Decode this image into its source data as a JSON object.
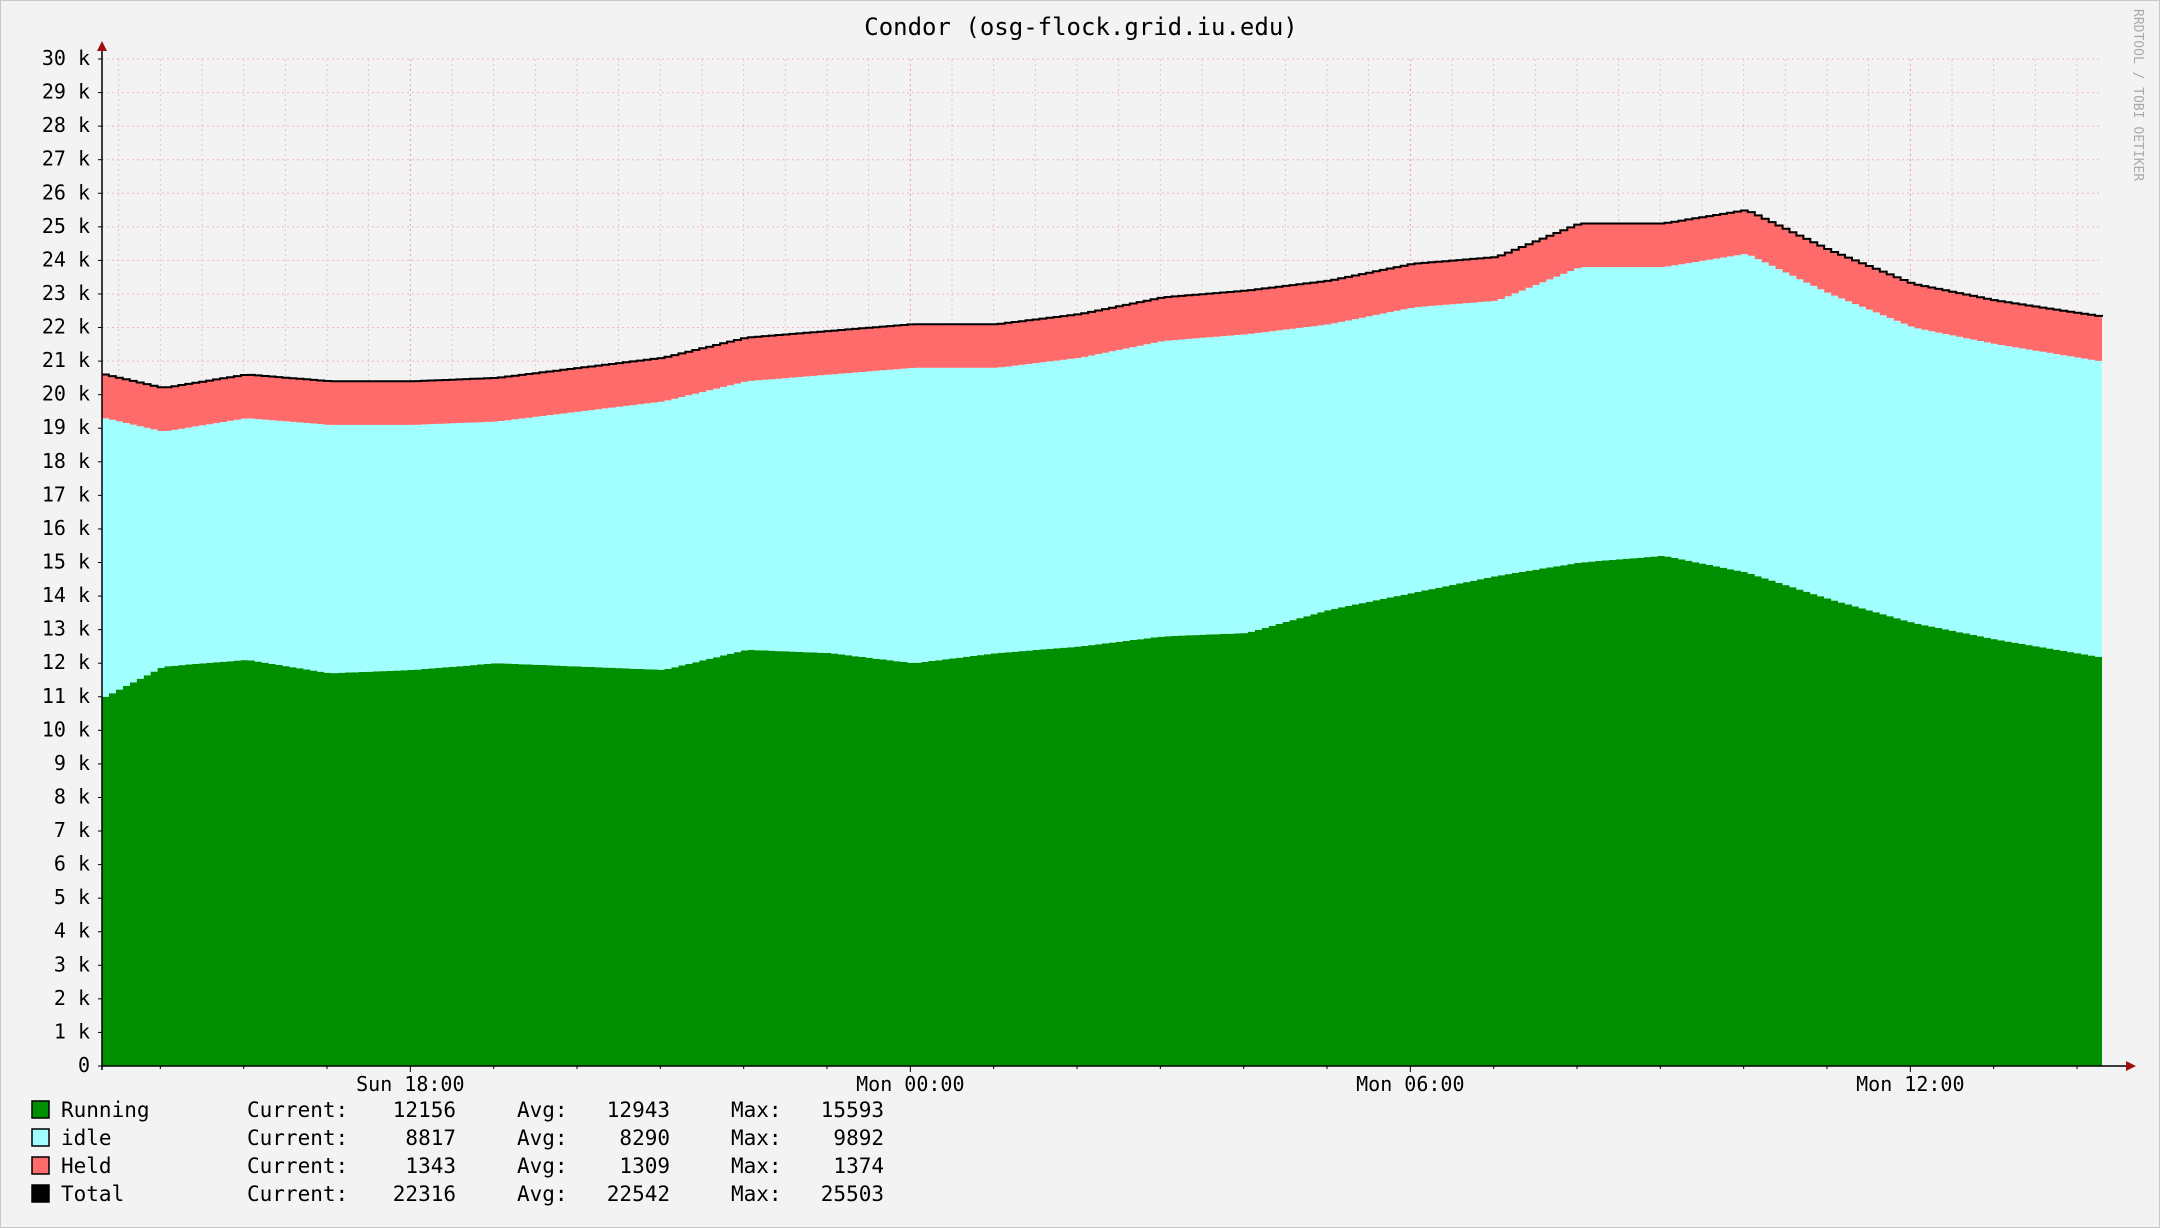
{
  "chart_data": {
    "type": "area",
    "title": "Condor (osg-flock.grid.iu.edu)",
    "watermark": "RRDTOOL / TOBI OETIKER",
    "ylim": [
      0,
      30000
    ],
    "y_ticks": [
      {
        "value": 0,
        "label": "0"
      },
      {
        "value": 1000,
        "label": "1 k"
      },
      {
        "value": 2000,
        "label": "2 k"
      },
      {
        "value": 3000,
        "label": "3 k"
      },
      {
        "value": 4000,
        "label": "4 k"
      },
      {
        "value": 5000,
        "label": "5 k"
      },
      {
        "value": 6000,
        "label": "6 k"
      },
      {
        "value": 7000,
        "label": "7 k"
      },
      {
        "value": 8000,
        "label": "8 k"
      },
      {
        "value": 9000,
        "label": "9 k"
      },
      {
        "value": 10000,
        "label": "10 k"
      },
      {
        "value": 11000,
        "label": "11 k"
      },
      {
        "value": 12000,
        "label": "12 k"
      },
      {
        "value": 13000,
        "label": "13 k"
      },
      {
        "value": 14000,
        "label": "14 k"
      },
      {
        "value": 15000,
        "label": "15 k"
      },
      {
        "value": 16000,
        "label": "16 k"
      },
      {
        "value": 17000,
        "label": "17 k"
      },
      {
        "value": 18000,
        "label": "18 k"
      },
      {
        "value": 19000,
        "label": "19 k"
      },
      {
        "value": 20000,
        "label": "20 k"
      },
      {
        "value": 21000,
        "label": "21 k"
      },
      {
        "value": 22000,
        "label": "22 k"
      },
      {
        "value": 23000,
        "label": "23 k"
      },
      {
        "value": 24000,
        "label": "24 k"
      },
      {
        "value": 25000,
        "label": "25 k"
      },
      {
        "value": 26000,
        "label": "26 k"
      },
      {
        "value": 27000,
        "label": "27 k"
      },
      {
        "value": 28000,
        "label": "28 k"
      },
      {
        "value": 29000,
        "label": "29 k"
      },
      {
        "value": 30000,
        "label": "30 k"
      }
    ],
    "x_range": [
      "Sun 14:18",
      "Mon 14:18"
    ],
    "x_ticks": [
      {
        "time": "Sun 18:00",
        "label": "Sun 18:00"
      },
      {
        "time": "Mon 00:00",
        "label": "Mon 00:00"
      },
      {
        "time": "Mon 06:00",
        "label": "Mon 06:00"
      },
      {
        "time": "Mon 12:00",
        "label": "Mon 12:00"
      }
    ],
    "grid": true,
    "stacked": true,
    "series": [
      {
        "name": "Running",
        "color": "#008f00",
        "x": [
          "Sun 14:18",
          "Sun 15:00",
          "Sun 16:00",
          "Sun 17:00",
          "Sun 18:00",
          "Sun 19:00",
          "Sun 20:00",
          "Sun 21:00",
          "Sun 22:00",
          "Sun 23:00",
          "Mon 00:00",
          "Mon 01:00",
          "Mon 02:00",
          "Mon 03:00",
          "Mon 04:00",
          "Mon 05:00",
          "Mon 06:00",
          "Mon 07:00",
          "Mon 08:00",
          "Mon 09:00",
          "Mon 10:00",
          "Mon 11:00",
          "Mon 12:00",
          "Mon 13:00",
          "Mon 14:18"
        ],
        "values": [
          11000,
          11900,
          12100,
          11700,
          11800,
          12000,
          11900,
          11800,
          12400,
          12300,
          12000,
          12300,
          12500,
          12800,
          12900,
          13600,
          14100,
          14600,
          15000,
          15200,
          14700,
          13900,
          13200,
          12700,
          12156
        ]
      },
      {
        "name": "idle",
        "color": "#a2ffff",
        "x": [
          "Sun 14:18",
          "Sun 15:00",
          "Sun 16:00",
          "Sun 17:00",
          "Sun 18:00",
          "Sun 19:00",
          "Sun 20:00",
          "Sun 21:00",
          "Sun 22:00",
          "Sun 23:00",
          "Mon 00:00",
          "Mon 01:00",
          "Mon 02:00",
          "Mon 03:00",
          "Mon 04:00",
          "Mon 05:00",
          "Mon 06:00",
          "Mon 07:00",
          "Mon 08:00",
          "Mon 09:00",
          "Mon 10:00",
          "Mon 11:00",
          "Mon 12:00",
          "Mon 13:00",
          "Mon 14:18"
        ],
        "values": [
          8300,
          7000,
          7200,
          7400,
          7300,
          7200,
          7600,
          8000,
          8000,
          8300,
          8800,
          8500,
          8600,
          8800,
          8900,
          8500,
          8500,
          8200,
          8800,
          8600,
          9500,
          9100,
          8800,
          8800,
          8817
        ]
      },
      {
        "name": "Held",
        "color": "#ff6b6b",
        "x": [
          "Sun 14:18",
          "Sun 15:00",
          "Sun 16:00",
          "Sun 17:00",
          "Sun 18:00",
          "Sun 19:00",
          "Sun 20:00",
          "Sun 21:00",
          "Sun 22:00",
          "Sun 23:00",
          "Mon 00:00",
          "Mon 01:00",
          "Mon 02:00",
          "Mon 03:00",
          "Mon 04:00",
          "Mon 05:00",
          "Mon 06:00",
          "Mon 07:00",
          "Mon 08:00",
          "Mon 09:00",
          "Mon 10:00",
          "Mon 11:00",
          "Mon 12:00",
          "Mon 13:00",
          "Mon 14:18"
        ],
        "values": [
          1300,
          1300,
          1300,
          1300,
          1300,
          1300,
          1300,
          1300,
          1300,
          1300,
          1300,
          1300,
          1300,
          1300,
          1300,
          1300,
          1300,
          1300,
          1300,
          1300,
          1300,
          1300,
          1300,
          1300,
          1343
        ]
      },
      {
        "name": "Total",
        "color": "#000000",
        "kind": "line",
        "x": [
          "Sun 14:18",
          "Sun 15:00",
          "Sun 16:00",
          "Sun 17:00",
          "Sun 18:00",
          "Sun 19:00",
          "Sun 20:00",
          "Sun 21:00",
          "Sun 22:00",
          "Sun 23:00",
          "Mon 00:00",
          "Mon 01:00",
          "Mon 02:00",
          "Mon 03:00",
          "Mon 04:00",
          "Mon 05:00",
          "Mon 06:00",
          "Mon 07:00",
          "Mon 08:00",
          "Mon 09:00",
          "Mon 10:00",
          "Mon 11:00",
          "Mon 12:00",
          "Mon 13:00",
          "Mon 14:18"
        ],
        "values": [
          20600,
          20200,
          20600,
          20400,
          20400,
          20500,
          20800,
          21100,
          21700,
          21900,
          22100,
          22100,
          22400,
          22900,
          23100,
          23400,
          23900,
          24100,
          25100,
          25100,
          25500,
          24300,
          23300,
          22800,
          22316
        ]
      }
    ],
    "legend": {
      "placement": "bottom-left",
      "label_current": "Current:",
      "label_avg": "Avg:",
      "label_max": "Max:",
      "rows": [
        {
          "name": "Running",
          "color": "#008f00",
          "current": "12156",
          "avg": "12943",
          "max": "15593"
        },
        {
          "name": "idle",
          "color": "#a2ffff",
          "current": "8817",
          "avg": "8290",
          "max": "9892"
        },
        {
          "name": "Held",
          "color": "#ff6b6b",
          "current": "1343",
          "avg": "1309",
          "max": "1374"
        },
        {
          "name": "Total",
          "color": "#000000",
          "current": "22316",
          "avg": "22542",
          "max": "25503"
        }
      ]
    }
  }
}
